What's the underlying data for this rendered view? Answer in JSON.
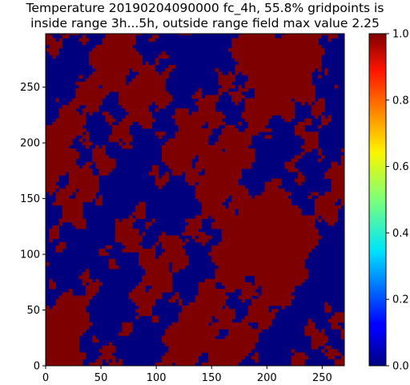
{
  "chart_data": {
    "type": "heatmap",
    "title_lines": [
      "Temperature 20190204090000 fc_4h, 55.8% gridpoints is",
      "inside range 3h...5h, outside range field max value 2.25"
    ],
    "xlabel": "",
    "ylabel": "",
    "xlim": [
      0,
      270
    ],
    "ylim": [
      0,
      298
    ],
    "x_ticks": [
      0,
      50,
      100,
      150,
      200,
      250
    ],
    "y_ticks": [
      0,
      50,
      100,
      150,
      200,
      250
    ],
    "colorbar": {
      "colormap": "jet",
      "range": [
        0.0,
        1.0
      ],
      "ticks": [
        "0.0",
        "0.2",
        "0.4",
        "0.6",
        "0.8",
        "1.0"
      ]
    },
    "binary_values": [
      0,
      1
    ],
    "fraction_inside_range": 0.558,
    "colors": {
      "low": "#00007f",
      "high": "#7f0000"
    }
  }
}
